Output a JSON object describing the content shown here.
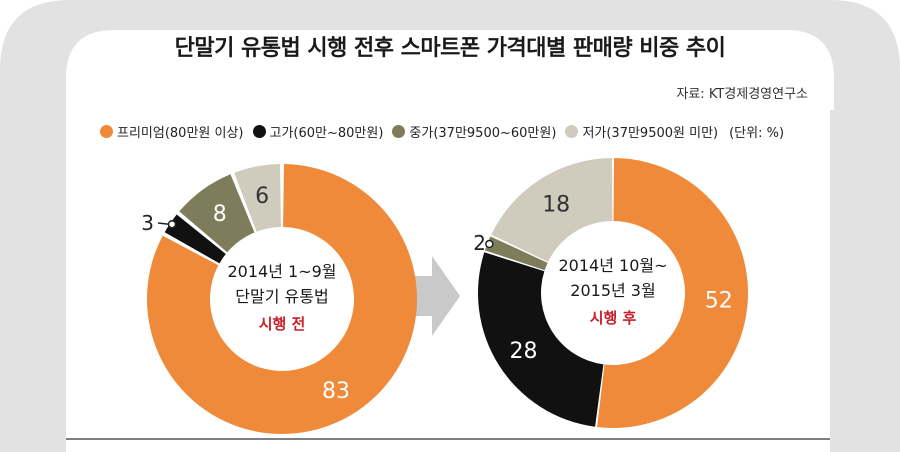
{
  "title": "단말기 유통법 시행 전후 스마트폰 가격대별 판매량 비중 추이",
  "source": "자료: KT경제경영연구소",
  "unit": "(단위: %)",
  "colors": {
    "premium": "#ef8a3a",
    "high": "#111111",
    "mid": "#7d7d5c",
    "low": "#cfcbbd",
    "phone": "#e2e2e2",
    "arrow": "#c9c9c9",
    "accent_red": "#c8202a"
  },
  "chart_data": [
    {
      "type": "pie",
      "donut": true,
      "center_lines": [
        "2014년 1~9월",
        "단말기 유통법"
      ],
      "center_emphasis": "시행 전",
      "categories": [
        "프리미엄(80만원 이상)",
        "고가(60만~80만원)",
        "중가(37만9500~60만원)",
        "저가(37만9500원 미만)"
      ],
      "values": [
        83,
        3,
        8,
        6
      ]
    },
    {
      "type": "pie",
      "donut": true,
      "center_lines": [
        "2014년 10월~",
        "2015년 3월"
      ],
      "center_emphasis": "시행 후",
      "categories": [
        "프리미엄(80만원 이상)",
        "고가(60만~80만원)",
        "중가(37만9500~60만원)",
        "저가(37만9500원 미만)"
      ],
      "values": [
        52,
        28,
        2,
        18
      ]
    }
  ],
  "legend": [
    {
      "label": "프리미엄(80만원 이상)",
      "color": "#ef8a3a"
    },
    {
      "label": "고가(60만~80만원)",
      "color": "#111111"
    },
    {
      "label": "중가(37만9500~60만원)",
      "color": "#7d7d5c"
    },
    {
      "label": "저가(37만9500원 미만)",
      "color": "#cfcbbd"
    }
  ]
}
